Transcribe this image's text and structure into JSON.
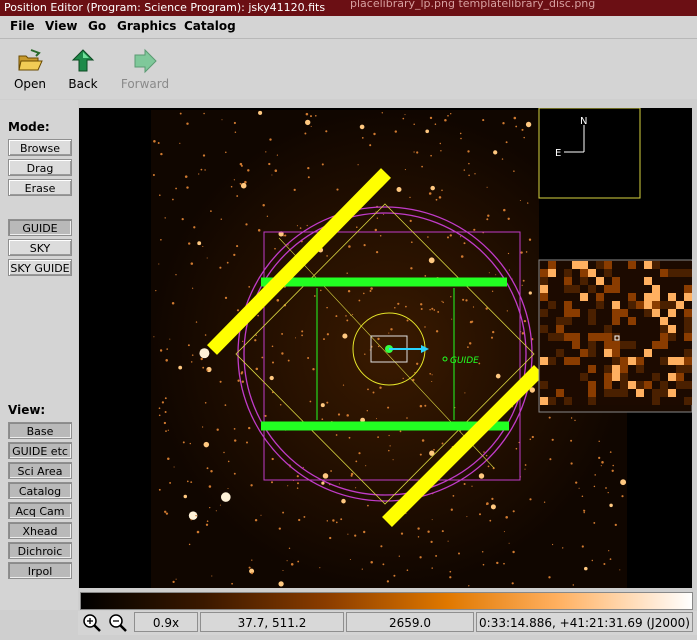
{
  "window": {
    "title": "Position Editor (Program: Science Program): jsky41120.fits",
    "background_text": "placelibrary_lp.png    templatelibrary_disc.png"
  },
  "menubar": {
    "items": [
      "File",
      "View",
      "Go",
      "Graphics",
      "Catalog"
    ]
  },
  "toolbar": {
    "open_label": "Open",
    "back_label": "Back",
    "forward_label": "Forward",
    "icons": {
      "open": "folder-open-icon",
      "back": "back-arrow-icon",
      "forward": "forward-arrow-icon"
    }
  },
  "mode": {
    "heading": "Mode:",
    "buttons": [
      "Browse",
      "Drag",
      "Erase"
    ]
  },
  "probes": {
    "buttons": [
      "GUIDE",
      "SKY",
      "SKY GUIDE"
    ],
    "pressed": "GUIDE"
  },
  "view": {
    "heading": "View:",
    "buttons": [
      "Base",
      "GUIDE etc",
      "Sci Area",
      "Catalog",
      "Acq Cam",
      "Xhead",
      "Dichroic",
      "Irpol"
    ]
  },
  "image": {
    "guide_label": "GUIDE",
    "compass_north": "N",
    "compass_east": "E",
    "colors": {
      "overlay_magenta": "#c03cc8",
      "overlay_green": "#22ff22",
      "overlay_yellow": "#ffff00",
      "guide_arrow": "#2ad5ff"
    }
  },
  "status": {
    "zoom_level": "0.9x",
    "pixel_coords": "37.7, 511.2",
    "pixel_value": "2659.0",
    "world_coords": "0:33:14.886, +41:21:31.69 (J2000)",
    "icons": {
      "zoom_in": "zoom-in-icon",
      "zoom_out": "zoom-out-icon"
    }
  }
}
